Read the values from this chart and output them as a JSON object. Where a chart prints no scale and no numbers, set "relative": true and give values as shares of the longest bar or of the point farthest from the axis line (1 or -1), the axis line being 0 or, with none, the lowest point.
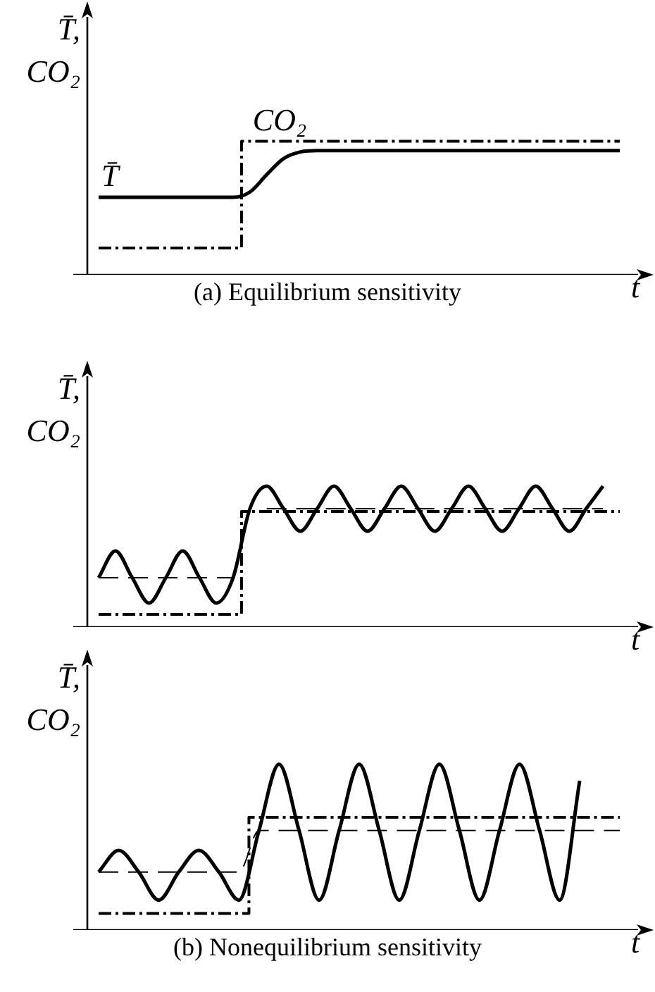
{
  "chart_data": [
    {
      "type": "line",
      "title": "(a) Equilibrium sensitivity",
      "xlabel": "t",
      "ylabel": "T̄, CO₂",
      "relative": true,
      "legend": false,
      "marker": "none",
      "categories": [
        null,
        null,
        null,
        null,
        null,
        null,
        null,
        null,
        null,
        null,
        null,
        null,
        null,
        null,
        null,
        null,
        null,
        null,
        null,
        null,
        null,
        null,
        null,
        null,
        null,
        null,
        null,
        null,
        null,
        null,
        null,
        null
      ],
      "series": [
        {
          "name": "T̄",
          "type": "line",
          "color": "#000000",
          "line_style": "solid",
          "values": [
            0.58,
            0.58,
            0.58,
            0.58,
            0.58,
            0.58,
            0.58,
            0.58,
            0.58,
            0.62,
            0.75,
            0.87,
            0.92,
            0.93,
            0.93,
            0.93,
            0.93,
            0.93,
            0.93,
            0.93,
            0.93,
            0.93,
            0.93,
            0.93,
            0.93,
            0.93,
            0.93,
            0.93,
            0.93,
            0.93,
            0.93,
            0.93
          ]
        },
        {
          "name": "CO₂",
          "type": "step",
          "color": "#000000",
          "line_style": "dashed",
          "values": [
            0.2,
            0.2,
            0.2,
            0.2,
            0.2,
            0.2,
            0.2,
            0.2,
            0.2,
            1,
            1,
            1,
            1,
            1,
            1,
            1,
            1,
            1,
            1,
            1,
            1,
            1,
            1,
            1,
            1,
            1,
            1,
            1,
            1,
            1,
            1,
            1
          ]
        }
      ]
    },
    {
      "type": "line",
      "xlabel": "t",
      "ylabel": "T̄, CO₂",
      "relative": true,
      "legend": false,
      "marker": "none",
      "categories": [
        null,
        null,
        null,
        null,
        null,
        null,
        null,
        null,
        null,
        null,
        null,
        null,
        null,
        null,
        null,
        null,
        null,
        null,
        null,
        null,
        null,
        null,
        null,
        null,
        null,
        null,
        null,
        null,
        null,
        null,
        null,
        null
      ],
      "series": [
        {
          "type": "line",
          "color": "#000000",
          "line_style": "solid",
          "values": [
            0.35,
            0.54,
            0.35,
            0.17,
            0.35,
            0.54,
            0.35,
            0.17,
            0.35,
            0.84,
            1,
            0.84,
            0.68,
            0.84,
            1,
            0.84,
            0.68,
            0.84,
            1,
            0.84,
            0.68,
            0.84,
            1,
            0.84,
            0.68,
            0.84,
            1,
            0.84,
            0.68,
            0.84,
            1,
            null
          ]
        },
        {
          "type": "step",
          "color": "#000000",
          "line_style": "dashed",
          "values": [
            0.09,
            0.09,
            0.09,
            0.09,
            0.09,
            0.09,
            0.09,
            0.09,
            0.09,
            0.82,
            0.82,
            0.82,
            0.82,
            0.82,
            0.82,
            0.82,
            0.82,
            0.82,
            0.82,
            0.82,
            0.82,
            0.82,
            0.82,
            0.82,
            0.82,
            0.82,
            0.82,
            0.82,
            0.82,
            0.82,
            0.82,
            0.82
          ]
        },
        {
          "type": "line",
          "color": "#000000",
          "line_style": "dashed",
          "values": [
            0.35,
            0.35,
            0.35,
            0.35,
            0.35,
            0.35,
            0.35,
            0.35,
            0.35,
            null,
            0.84,
            0.84,
            0.84,
            0.84,
            0.84,
            0.84,
            0.84,
            0.84,
            0.84,
            0.84,
            0.84,
            0.84,
            0.84,
            0.84,
            0.84,
            0.84,
            0.84,
            0.84,
            0.84,
            0.84,
            0.84,
            null
          ]
        }
      ]
    },
    {
      "type": "line",
      "title": "(b) Nonequilibrium sensitivity",
      "xlabel": "t",
      "ylabel": "T̄, CO₂",
      "relative": true,
      "legend": false,
      "marker": "none",
      "categories": [
        null,
        null,
        null,
        null,
        null,
        null,
        null,
        null,
        null,
        null,
        null,
        null,
        null,
        null,
        null,
        null,
        null,
        null,
        null,
        null,
        null,
        null,
        null,
        null,
        null,
        null,
        null
      ],
      "series": [
        {
          "type": "line",
          "color": "#000000",
          "line_style": "solid",
          "values": [
            0.35,
            0.48,
            0.35,
            0.18,
            0.35,
            0.48,
            0.35,
            0.18,
            0.6,
            1,
            0.6,
            0.18,
            0.6,
            1,
            0.6,
            0.18,
            0.6,
            1,
            0.6,
            0.18,
            0.6,
            1,
            0.6,
            0.18,
            0.9,
            null,
            null
          ]
        },
        {
          "type": "step",
          "color": "#000000",
          "line_style": "dashed",
          "values": [
            0.1,
            0.1,
            0.1,
            0.1,
            0.1,
            0.1,
            0.1,
            0.1,
            0.68,
            0.68,
            0.68,
            0.68,
            0.68,
            0.68,
            0.68,
            0.68,
            0.68,
            0.68,
            0.68,
            0.68,
            0.68,
            0.68,
            0.68,
            0.68,
            0.68,
            0.68,
            0.68
          ]
        },
        {
          "type": "line",
          "color": "#000000",
          "line_style": "dashed",
          "values": [
            0.35,
            0.35,
            0.35,
            0.35,
            0.35,
            0.35,
            0.35,
            0.35,
            0.6,
            0.6,
            0.6,
            0.6,
            0.6,
            0.6,
            0.6,
            0.6,
            0.6,
            0.6,
            0.6,
            0.6,
            0.6,
            0.6,
            0.6,
            0.6,
            0.6,
            0.6,
            0.6
          ]
        }
      ]
    }
  ]
}
